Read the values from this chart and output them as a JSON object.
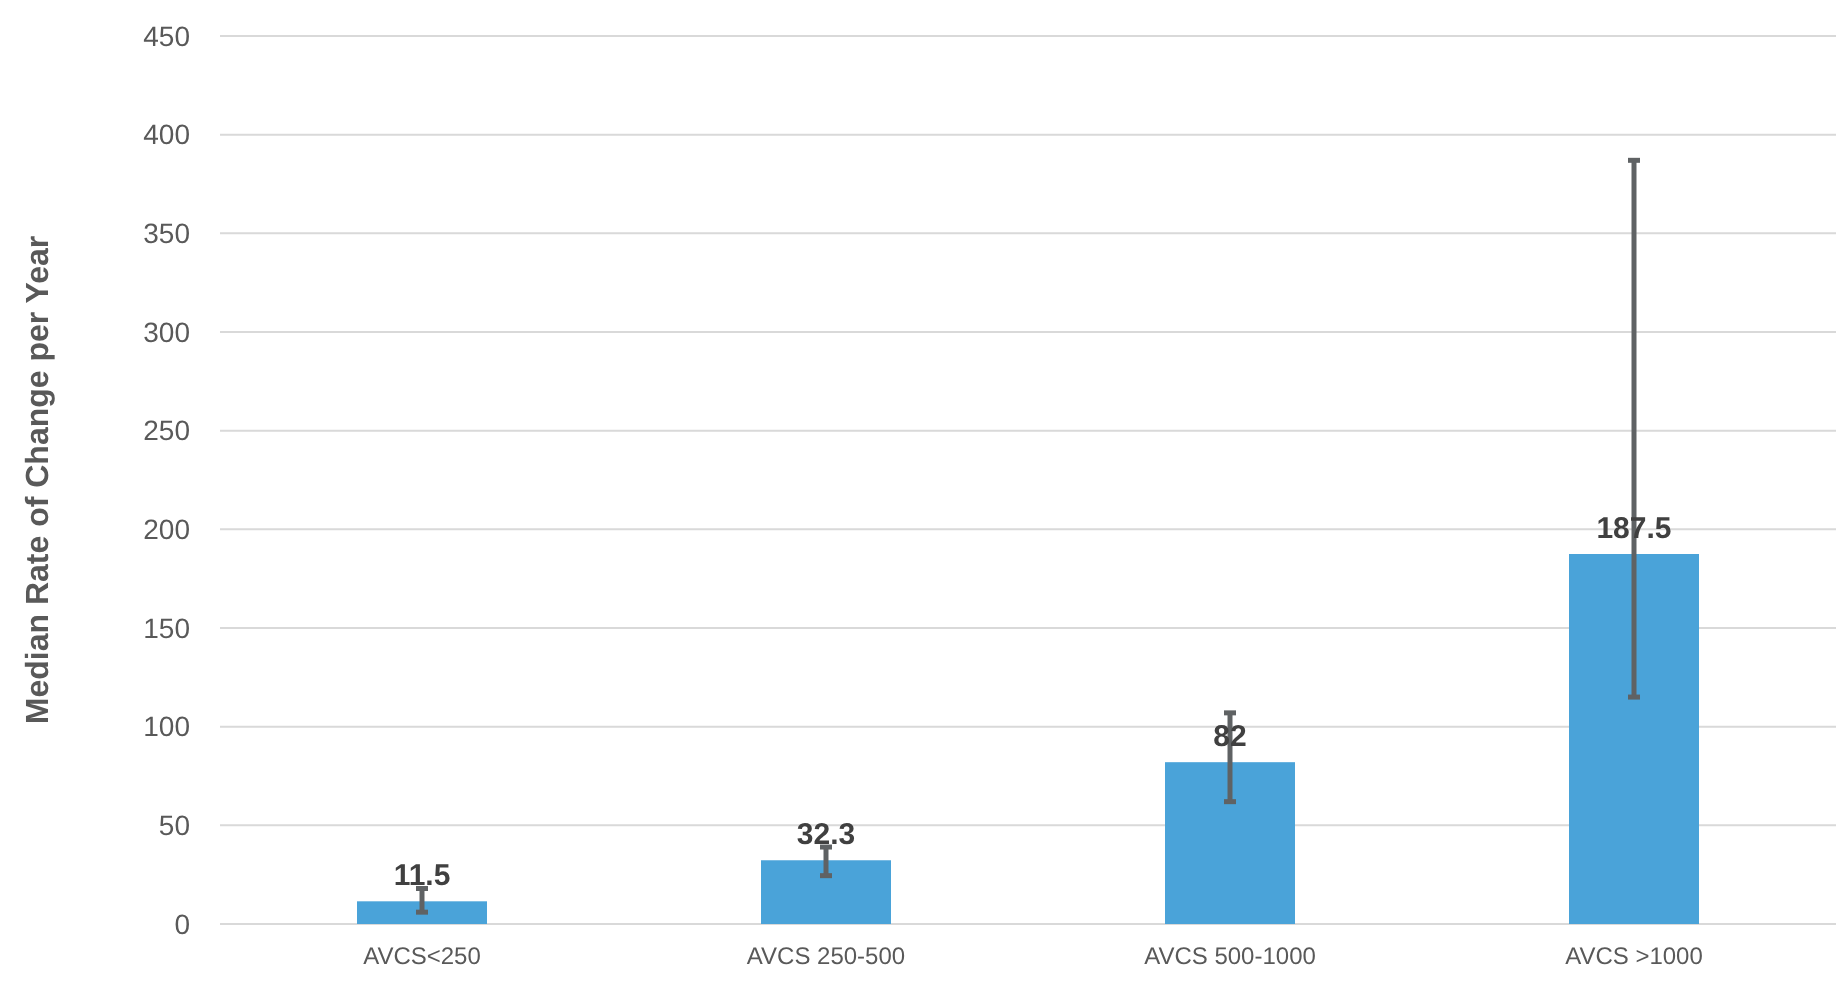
{
  "chart_data": {
    "type": "bar",
    "ylabel": "Median Rate of Change per Year",
    "categories": [
      "AVCS<250",
      "AVCS 250-500",
      "AVCS 500-1000",
      "AVCS >1000"
    ],
    "values": [
      11.5,
      32.3,
      82,
      187.5
    ],
    "color": "#4aa3d9",
    "errors": [
      [
        6,
        18
      ],
      [
        24.5,
        39
      ],
      [
        62,
        107
      ],
      [
        115,
        387
      ]
    ],
    "data_labels": true,
    "ylim": [
      0,
      450
    ],
    "yticks": [
      0,
      50,
      100,
      150,
      200,
      250,
      300,
      350,
      400,
      450
    ],
    "grid": "y"
  }
}
